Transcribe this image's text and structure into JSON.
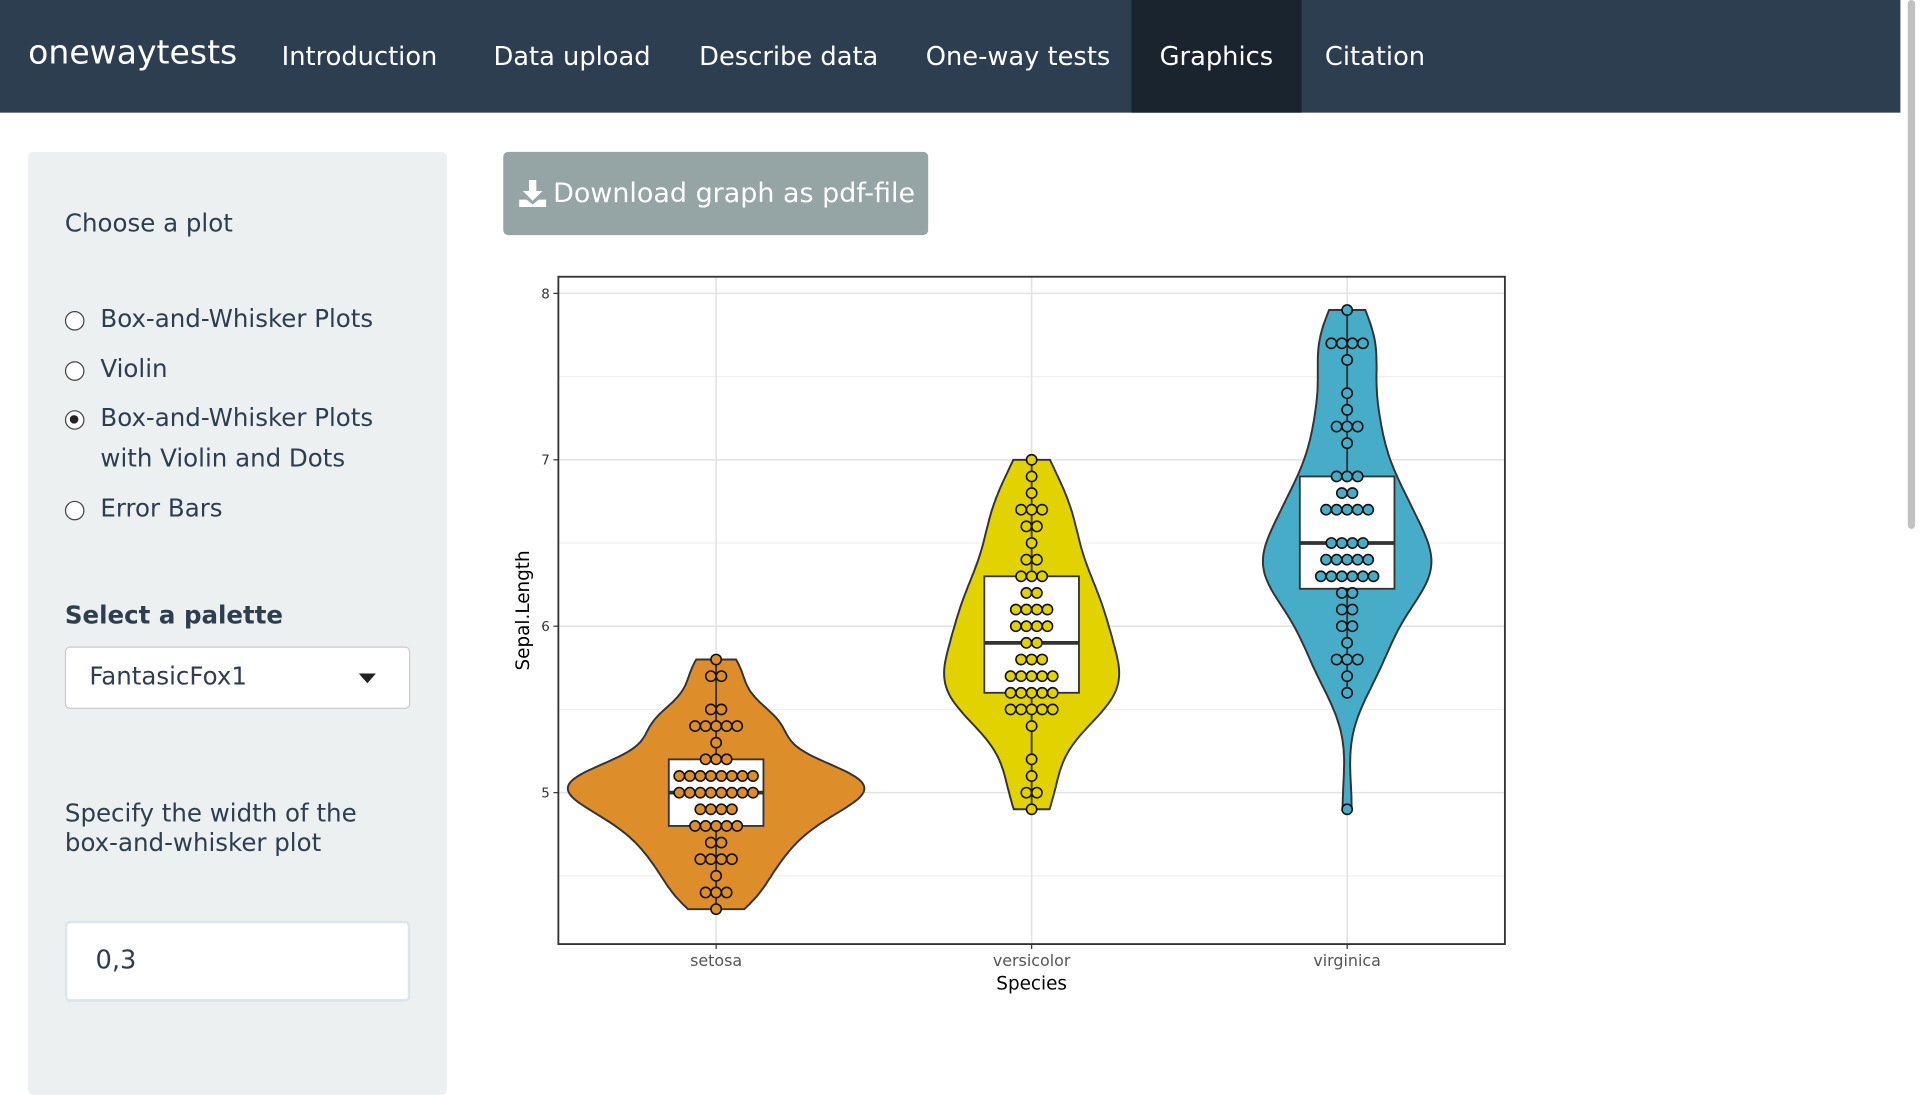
{
  "navbar": {
    "brand": "onewaytests",
    "tabs": [
      "Introduction",
      "Data upload",
      "Describe data",
      "One-way tests",
      "Graphics",
      "Citation"
    ],
    "active": 4
  },
  "sidebar": {
    "plot_label": "Choose a plot",
    "plot_options": [
      "Box-and-Whisker Plots",
      "Violin",
      "Box-and-Whisker Plots with Violin and Dots",
      "Error Bars"
    ],
    "selected_plot": 2,
    "palette_label": "Select a palette",
    "palette": "FantasicFox1",
    "width_label": "Specify the width of the box-and-whisker plot",
    "width": "0,3"
  },
  "download_button": "Download graph as pdf-file",
  "chart_data": {
    "type": "violin",
    "x_label": "Species",
    "y_label": "Sepal.Length",
    "categories": [
      "setosa",
      "versicolor",
      "virginica"
    ],
    "ylim": [
      4.09,
      8.1
    ],
    "yticks": [
      5,
      6,
      7,
      8
    ],
    "minor_yticks": [
      4.5,
      5.5,
      6.5,
      7.5
    ],
    "grid": true,
    "groups": [
      {
        "color": "#DD8D29",
        "box": {
          "min": 4.3,
          "q1": 4.8,
          "median": 5.0,
          "q3": 5.2,
          "max": 5.8
        },
        "dots": {
          "values": [
            4.3,
            4.4,
            4.5,
            4.6,
            4.7,
            4.8,
            4.9,
            5.0,
            5.1,
            5.2,
            5.3,
            5.4,
            5.5,
            5.7,
            5.8
          ],
          "counts": [
            1,
            3,
            1,
            4,
            2,
            5,
            4,
            8,
            8,
            3,
            1,
            5,
            2,
            2,
            1
          ]
        }
      },
      {
        "color": "#E2D200",
        "box": {
          "min": 4.9,
          "q1": 5.6,
          "median": 5.9,
          "q3": 6.3,
          "max": 7.0
        },
        "dots": {
          "values": [
            4.9,
            5.0,
            5.1,
            5.2,
            5.4,
            5.5,
            5.6,
            5.7,
            5.8,
            5.9,
            6.0,
            6.1,
            6.2,
            6.3,
            6.4,
            6.5,
            6.6,
            6.7,
            6.8,
            6.9,
            7.0
          ],
          "counts": [
            1,
            2,
            1,
            1,
            1,
            5,
            5,
            5,
            3,
            2,
            4,
            4,
            2,
            3,
            2,
            1,
            2,
            3,
            1,
            1,
            1
          ]
        }
      },
      {
        "color": "#46ACC8",
        "box": {
          "min": 5.6,
          "q1": 6.225,
          "median": 6.5,
          "q3": 6.9,
          "max": 7.9
        },
        "dots": {
          "values": [
            4.9,
            5.6,
            5.7,
            5.8,
            5.9,
            6.0,
            6.1,
            6.2,
            6.3,
            6.4,
            6.5,
            6.7,
            6.8,
            6.9,
            7.1,
            7.2,
            7.3,
            7.4,
            7.6,
            7.7,
            7.9
          ],
          "counts": [
            1,
            1,
            1,
            3,
            1,
            2,
            2,
            2,
            6,
            5,
            4,
            5,
            2,
            3,
            1,
            3,
            1,
            1,
            1,
            4,
            1
          ]
        }
      }
    ]
  }
}
